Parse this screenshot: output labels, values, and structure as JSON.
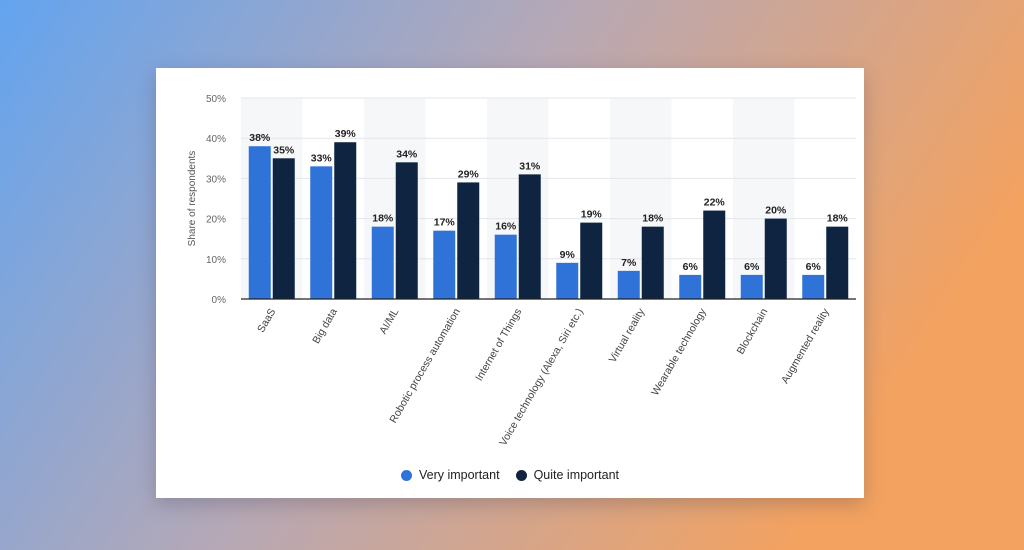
{
  "colors": {
    "very_important": "#2f73d9",
    "quite_important": "#0f2440",
    "background_left": "#63a4ef",
    "background_right": "#f3a260"
  },
  "legend": {
    "very_important": "Very important",
    "quite_important": "Quite important"
  },
  "chart_data": {
    "type": "bar",
    "ylabel": "Share of respondents",
    "xlabel": "",
    "ylim": [
      0,
      50
    ],
    "yticks": [
      "0%",
      "10%",
      "20%",
      "30%",
      "40%",
      "50%"
    ],
    "grid": true,
    "legend_position": "bottom",
    "categories": [
      "SaaS",
      "Big data",
      "AI/ML",
      "Robotic process automation",
      "Internet of Things",
      "Voice technology (Alexa, Siri etc.)",
      "Virtual reality",
      "Wearable technology",
      "Blockchain",
      "Augmented reality"
    ],
    "series": [
      {
        "name": "Very important",
        "values": [
          38,
          33,
          18,
          17,
          16,
          9,
          7,
          6,
          6,
          6
        ]
      },
      {
        "name": "Quite important",
        "values": [
          35,
          39,
          34,
          29,
          31,
          19,
          18,
          22,
          20,
          18
        ]
      }
    ]
  }
}
